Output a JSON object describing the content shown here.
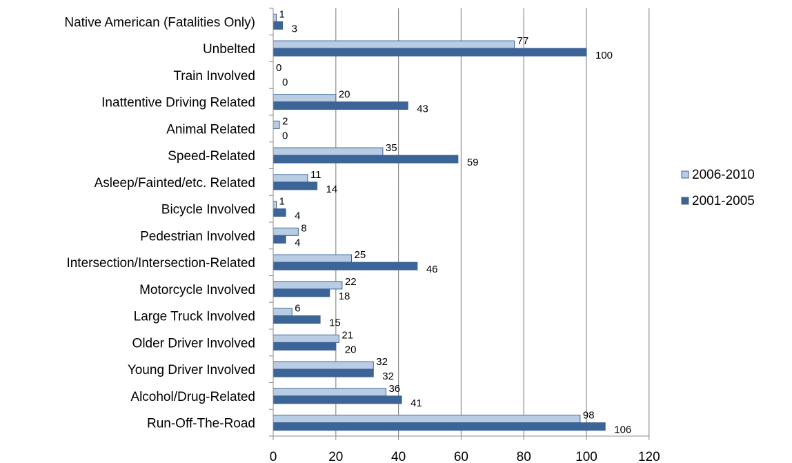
{
  "chart_data": {
    "type": "bar",
    "orientation": "horizontal",
    "categories": [
      "Native American (Fatalities Only)",
      "Unbelted",
      "Train Involved",
      "Inattentive Driving Related",
      "Animal Related",
      "Speed-Related",
      "Asleep/Fainted/etc. Related",
      "Bicycle Involved",
      "Pedestrian Involved",
      "Intersection/Intersection-Related",
      "Motorcycle Involved",
      "Large Truck Involved",
      "Older Driver Involved",
      "Young Driver Involved",
      "Alcohol/Drug-Related",
      "Run-Off-The-Road"
    ],
    "series": [
      {
        "name": "2006-2010",
        "color": "#b8cce4",
        "values": [
          1,
          77,
          0,
          20,
          2,
          35,
          11,
          1,
          8,
          25,
          22,
          6,
          21,
          32,
          36,
          98
        ]
      },
      {
        "name": "2001-2005",
        "color": "#3c6496",
        "values": [
          3,
          100,
          0,
          43,
          0,
          59,
          14,
          4,
          4,
          46,
          18,
          15,
          20,
          32,
          41,
          106
        ]
      }
    ],
    "xlim": [
      0,
      120
    ],
    "xticks": [
      "0",
      "20",
      "40",
      "60",
      "80",
      "100",
      "120"
    ],
    "grid": "vertical",
    "legend_position": "right",
    "title": "",
    "xlabel": "",
    "ylabel": ""
  }
}
